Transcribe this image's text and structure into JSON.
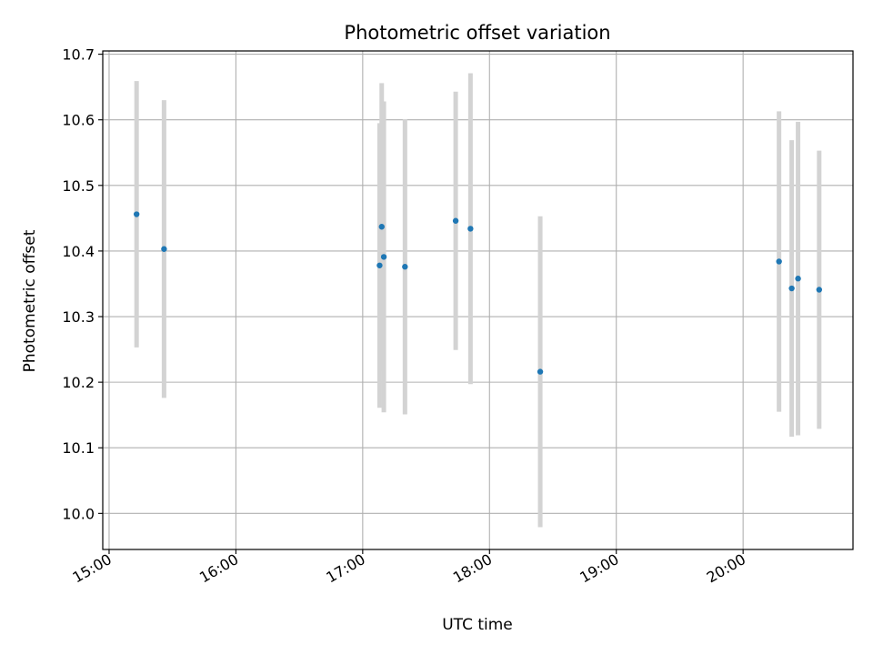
{
  "chart_data": {
    "type": "scatter",
    "title": "Photometric offset variation",
    "xlabel": "UTC time",
    "ylabel": "Photometric offset",
    "grid": true,
    "x_format": "HH:MM",
    "xlim": [
      "14:57",
      "20:52"
    ],
    "ylim": [
      9.945,
      10.705
    ],
    "x_ticks": [
      "15:00",
      "16:00",
      "17:00",
      "18:00",
      "19:00",
      "20:00"
    ],
    "y_ticks": [
      "10.0",
      "10.1",
      "10.2",
      "10.3",
      "10.4",
      "10.5",
      "10.6",
      "10.7"
    ],
    "point_color": "#1f77b4",
    "errorbar_color": "#d3d3d3",
    "series": [
      {
        "points": [
          {
            "x": "15:13",
            "y": 10.456,
            "yerr": [
              10.253,
              10.659
            ]
          },
          {
            "x": "15:26",
            "y": 10.403,
            "yerr": [
              10.176,
              10.63
            ]
          },
          {
            "x": "17:08",
            "y": 10.378,
            "yerr": [
              10.161,
              10.595
            ]
          },
          {
            "x": "17:09",
            "y": 10.437,
            "yerr": [
              10.218,
              10.656
            ]
          },
          {
            "x": "17:10",
            "y": 10.391,
            "yerr": [
              10.154,
              10.628
            ]
          },
          {
            "x": "17:20",
            "y": 10.376,
            "yerr": [
              10.151,
              10.601
            ]
          },
          {
            "x": "17:44",
            "y": 10.446,
            "yerr": [
              10.249,
              10.643
            ]
          },
          {
            "x": "17:51",
            "y": 10.434,
            "yerr": [
              10.197,
              10.671
            ]
          },
          {
            "x": "18:24",
            "y": 10.216,
            "yerr": [
              9.979,
              10.453
            ]
          },
          {
            "x": "20:17",
            "y": 10.384,
            "yerr": [
              10.155,
              10.613
            ]
          },
          {
            "x": "20:23",
            "y": 10.343,
            "yerr": [
              10.117,
              10.569
            ]
          },
          {
            "x": "20:26",
            "y": 10.358,
            "yerr": [
              10.119,
              10.597
            ]
          },
          {
            "x": "20:36",
            "y": 10.341,
            "yerr": [
              10.129,
              10.553
            ]
          }
        ]
      }
    ]
  }
}
